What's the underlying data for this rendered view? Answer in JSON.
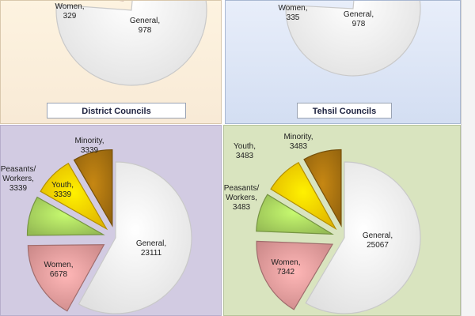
{
  "captions": {
    "district": "District Councils",
    "tehsil": "Tehsil Councils"
  },
  "colors": {
    "general": "#ffffff",
    "women": "#e59b9b",
    "peasants": "#a9d45f",
    "youth": "#ffcc00",
    "minority": "#a87210"
  },
  "chart_data": [
    {
      "type": "pie",
      "title": "District Councils",
      "slices": [
        {
          "key": "general",
          "name": "General",
          "value": 978
        },
        {
          "key": "women",
          "name": "Women",
          "value": 329
        }
      ]
    },
    {
      "type": "pie",
      "title": "Tehsil Councils",
      "slices": [
        {
          "key": "general",
          "name": "General",
          "value": 978
        },
        {
          "key": "women",
          "name": "Women",
          "value": 335
        }
      ]
    },
    {
      "type": "pie",
      "title": "",
      "slices": [
        {
          "key": "general",
          "name": "General",
          "value": 23111
        },
        {
          "key": "women",
          "name": "Women",
          "value": 6678
        },
        {
          "key": "peasants",
          "name": "Peasants/ Workers",
          "value": 3339
        },
        {
          "key": "youth",
          "name": "Youth",
          "value": 3339
        },
        {
          "key": "minority",
          "name": "Minority",
          "value": 3339
        }
      ]
    },
    {
      "type": "pie",
      "title": "",
      "slices": [
        {
          "key": "general",
          "name": "General",
          "value": 25067
        },
        {
          "key": "women",
          "name": "Women",
          "value": 7342
        },
        {
          "key": "peasants",
          "name": "Peasants/ Workers",
          "value": 3483
        },
        {
          "key": "youth",
          "name": "Youth",
          "value": 3483
        },
        {
          "key": "minority",
          "name": "Minority",
          "value": 3483
        }
      ]
    }
  ]
}
